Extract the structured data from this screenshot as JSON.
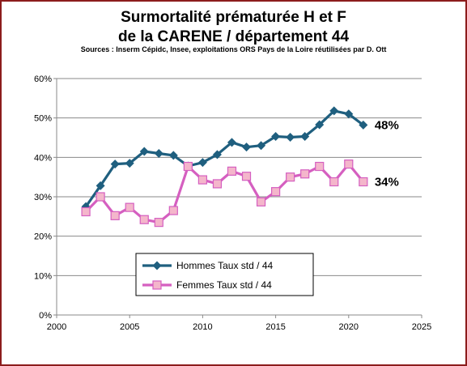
{
  "chart_data": {
    "type": "line",
    "title_line1": "Surmortalité prématurée H et F",
    "title_line2": "de la CARENE / département  44",
    "subtitle": "Sources : Inserm Cépidc, Insee, exploitations ORS Pays de la Loire réutilisées par D. Ott",
    "xlim": [
      2000,
      2025
    ],
    "ylim": [
      0,
      0.6
    ],
    "x_ticks": [
      2000,
      2005,
      2010,
      2015,
      2020,
      2025
    ],
    "y_ticks": [
      0,
      0.1,
      0.2,
      0.3,
      0.4,
      0.5,
      0.6
    ],
    "y_tick_labels": [
      "0%",
      "10%",
      "20%",
      "30%",
      "40%",
      "50%",
      "60%"
    ],
    "grid": "horizontal",
    "legend_position": "bottom-left",
    "series": [
      {
        "name": "Hommes Taux std / 44",
        "color": "#1f5f7f",
        "marker": "diamond",
        "x": [
          2002,
          2003,
          2004,
          2005,
          2006,
          2007,
          2008,
          2009,
          2010,
          2011,
          2012,
          2013,
          2014,
          2015,
          2016,
          2017,
          2018,
          2019,
          2020,
          2021
        ],
        "y": [
          0.275,
          0.328,
          0.383,
          0.385,
          0.415,
          0.41,
          0.405,
          0.378,
          0.387,
          0.407,
          0.438,
          0.426,
          0.43,
          0.453,
          0.451,
          0.453,
          0.483,
          0.518,
          0.51,
          0.482
        ],
        "end_label": "48%"
      },
      {
        "name": "Femmes Taux  std / 44",
        "color": "#d55fc0",
        "marker_fill": "#f4b6cb",
        "marker": "square",
        "x": [
          2002,
          2003,
          2004,
          2005,
          2006,
          2007,
          2008,
          2009,
          2010,
          2011,
          2012,
          2013,
          2014,
          2015,
          2016,
          2017,
          2018,
          2019,
          2020,
          2021
        ],
        "y": [
          0.262,
          0.3,
          0.252,
          0.273,
          0.242,
          0.235,
          0.265,
          0.377,
          0.343,
          0.333,
          0.365,
          0.352,
          0.287,
          0.313,
          0.35,
          0.358,
          0.377,
          0.338,
          0.383,
          0.338
        ],
        "end_label": "34%"
      }
    ]
  }
}
